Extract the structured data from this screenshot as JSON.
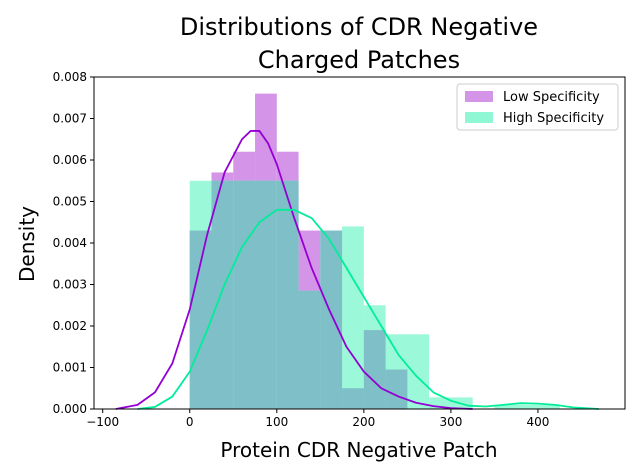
{
  "chart_data": {
    "type": "bar",
    "title_lines": [
      "Distributions of CDR Negative",
      "Charged Patches"
    ],
    "xlabel": "Protein CDR Negative Patch",
    "ylabel": "Density",
    "xlim": [
      -110,
      500
    ],
    "ylim": [
      0,
      0.008
    ],
    "xticks": [
      -100,
      0,
      100,
      200,
      300,
      400
    ],
    "yticks": [
      0.0,
      0.001,
      0.002,
      0.003,
      0.004,
      0.005,
      0.006,
      0.007,
      0.008
    ],
    "xtick_labels": [
      "−100",
      "0",
      "100",
      "200",
      "300",
      "400"
    ],
    "ytick_labels": [
      "0.000",
      "0.001",
      "0.002",
      "0.003",
      "0.004",
      "0.005",
      "0.006",
      "0.007",
      "0.008"
    ],
    "legend_position": "upper right",
    "series": [
      {
        "name": "Low Specificity",
        "color": "#9400d3",
        "bar_color": "#d495e8",
        "bins": [
          {
            "x0": 0,
            "x1": 25,
            "value": 0.0043
          },
          {
            "x0": 25,
            "x1": 50,
            "value": 0.0057
          },
          {
            "x0": 50,
            "x1": 75,
            "value": 0.0062
          },
          {
            "x0": 75,
            "x1": 100,
            "value": 0.0076
          },
          {
            "x0": 100,
            "x1": 125,
            "value": 0.0062
          },
          {
            "x0": 125,
            "x1": 150,
            "value": 0.0043
          },
          {
            "x0": 150,
            "x1": 175,
            "value": 0.0043
          },
          {
            "x0": 175,
            "x1": 200,
            "value": 0.0005
          },
          {
            "x0": 200,
            "x1": 225,
            "value": 0.0019
          },
          {
            "x0": 225,
            "x1": 250,
            "value": 0.00095
          }
        ],
        "kde": {
          "x": [
            -85,
            -60,
            -40,
            -20,
            0,
            20,
            40,
            60,
            70,
            80,
            90,
            100,
            120,
            140,
            160,
            180,
            200,
            220,
            240,
            260,
            280,
            300,
            325
          ],
          "y": [
            0.0,
            0.0001,
            0.0004,
            0.0011,
            0.0024,
            0.0042,
            0.0057,
            0.0065,
            0.0067,
            0.0067,
            0.0064,
            0.0059,
            0.0046,
            0.0034,
            0.0024,
            0.0015,
            0.0009,
            0.0005,
            0.0003,
            0.00015,
            7e-05,
            2e-05,
            0.0
          ]
        }
      },
      {
        "name": "High Specificity",
        "color": "#00ee99",
        "bar_color": "#90f7d4",
        "bins": [
          {
            "x0": 0,
            "x1": 125,
            "value": 0.0055
          },
          {
            "x0": 125,
            "x1": 150,
            "value": 0.00285
          },
          {
            "x0": 150,
            "x1": 175,
            "value": 0.0043
          },
          {
            "x0": 175,
            "x1": 200,
            "value": 0.0044
          },
          {
            "x0": 200,
            "x1": 225,
            "value": 0.0025
          },
          {
            "x0": 225,
            "x1": 275,
            "value": 0.0018
          },
          {
            "x0": 275,
            "x1": 325,
            "value": 0.00028
          },
          {
            "x0": 350,
            "x1": 425,
            "value": 0.0001
          }
        ],
        "kde": {
          "x": [
            -60,
            -40,
            -20,
            0,
            20,
            40,
            60,
            80,
            100,
            120,
            140,
            160,
            180,
            200,
            220,
            240,
            260,
            280,
            300,
            320,
            340,
            360,
            380,
            400,
            420,
            440,
            470
          ],
          "y": [
            0.0,
            5e-05,
            0.0003,
            0.0009,
            0.0019,
            0.003,
            0.0039,
            0.0045,
            0.0048,
            0.0048,
            0.0046,
            0.0041,
            0.0034,
            0.0027,
            0.002,
            0.0013,
            0.0008,
            0.0004,
            0.0002,
            8e-05,
            6e-05,
            0.0001,
            0.00014,
            0.00013,
            0.0001,
            4e-05,
            0.0
          ]
        }
      }
    ]
  }
}
